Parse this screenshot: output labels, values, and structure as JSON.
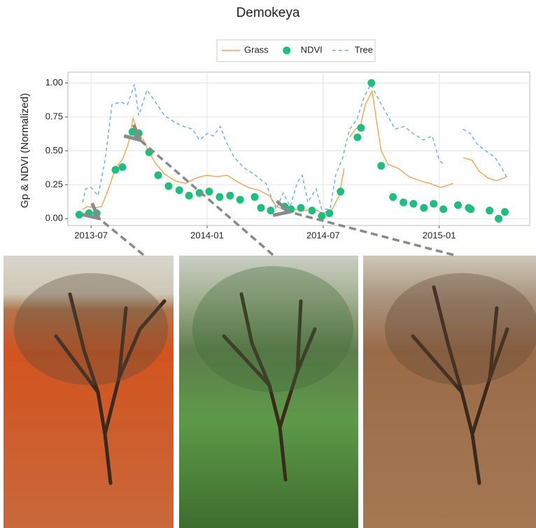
{
  "chart_data": {
    "type": "line",
    "title": "Demokeya",
    "ylabel": "Gp & NDVI (Normalized)",
    "xlim": [
      2013.4,
      2015.39
    ],
    "xticks": [
      {
        "value": 2013.5,
        "label": "2013-07"
      },
      {
        "value": 2014.0,
        "label": "2014-01"
      },
      {
        "value": 2014.5,
        "label": "2014-07"
      },
      {
        "value": 2015.0,
        "label": "2015-01"
      }
    ],
    "ylim": [
      -0.05,
      1.08
    ],
    "yticks": [
      {
        "value": 0,
        "label": "0.00"
      },
      0.25,
      {
        "value": 0.5,
        "label": "0.50"
      },
      0.75,
      {
        "value": 1,
        "label": "1.00"
      }
    ],
    "grid": true,
    "legend": "top",
    "series": [
      {
        "name": "Grass",
        "color": "#f5a54a",
        "style": "solid",
        "x": [
          2013.464,
          2013.485,
          2013.515,
          2013.545,
          2013.575,
          2013.605,
          2013.636,
          2013.66,
          2013.681,
          2013.705,
          2013.726,
          2013.747,
          2013.777,
          2013.816,
          2013.861,
          2013.907,
          2013.952,
          2013.997,
          2014.042,
          2014.087,
          2014.133,
          2014.178,
          2014.223,
          2014.268,
          2014.298,
          2014.328,
          2014.373,
          2014.419,
          2014.464,
          2014.5,
          2014.539,
          2014.569,
          2014.59,
          2014.6,
          2014.614,
          2014.639,
          2014.66,
          2014.681,
          2014.711,
          2014.729,
          2014.75,
          2014.78,
          2014.825,
          2014.87,
          2014.916,
          2014.961,
          2015.006,
          2015.06,
          2015.08,
          2015.105,
          2015.142,
          2015.172,
          2015.211,
          2015.247,
          2015.292
        ],
        "values": [
          0.07,
          0.09,
          0.08,
          0.09,
          0.22,
          0.37,
          0.44,
          0.55,
          0.74,
          0.62,
          0.58,
          0.5,
          0.41,
          0.33,
          0.28,
          0.26,
          0.3,
          0.32,
          0.31,
          0.32,
          0.27,
          0.23,
          0.21,
          0.17,
          0.09,
          0.07,
          0.07,
          0.06,
          0.07,
          0.04,
          0.07,
          0.17,
          0.37,
          null,
          0.6,
          0.66,
          0.68,
          0.84,
          0.94,
          0.73,
          0.5,
          0.4,
          0.37,
          0.31,
          0.28,
          0.26,
          0.23,
          0.26,
          null,
          0.45,
          0.43,
          0.35,
          0.3,
          0.28,
          0.31
        ]
      },
      {
        "name": "NDVI",
        "color": "#1dbf7f",
        "style": "points",
        "x": [
          2013.449,
          2013.491,
          2013.524,
          2013.605,
          2013.635,
          2013.678,
          2013.705,
          2013.75,
          2013.789,
          2013.834,
          2013.88,
          2013.922,
          2013.967,
          2014.009,
          2014.054,
          2014.099,
          2014.142,
          2014.205,
          2014.232,
          2014.274,
          2014.334,
          2014.361,
          2014.404,
          2014.452,
          2014.494,
          2014.527,
          2014.575,
          2014.648,
          2014.663,
          2014.708,
          2014.75,
          2014.801,
          2014.846,
          2014.889,
          2014.934,
          2014.976,
          2015.018,
          2015.081,
          2015.127,
          2015.136,
          2015.217,
          2015.256,
          2015.283
        ],
        "values": [
          0.03,
          0.04,
          0.04,
          0.36,
          0.38,
          0.64,
          0.63,
          0.49,
          0.32,
          0.24,
          0.21,
          0.17,
          0.19,
          0.2,
          0.16,
          0.17,
          0.14,
          0.16,
          0.08,
          0.06,
          0.09,
          0.07,
          0.08,
          0.06,
          0.02,
          0.04,
          0.2,
          0.6,
          0.67,
          1.0,
          0.39,
          0.16,
          0.12,
          0.11,
          0.08,
          0.11,
          0.07,
          0.1,
          0.08,
          0.07,
          0.06,
          0.0,
          0.05
        ]
      },
      {
        "name": "Tree",
        "color": "#6baed6",
        "style": "dashed",
        "x": [
          2013.464,
          2013.476,
          2013.5,
          2013.53,
          2013.56,
          2013.59,
          2013.627,
          2013.657,
          2013.687,
          2013.705,
          2013.741,
          2013.777,
          2013.816,
          2013.861,
          2013.898,
          2013.937,
          2013.967,
          2014.003,
          2014.027,
          2014.057,
          2014.078,
          2014.117,
          2014.163,
          2014.208,
          2014.253,
          2014.298,
          2014.328,
          2014.358,
          2014.389,
          2014.41,
          2014.434,
          2014.47,
          2014.494,
          2014.53,
          2014.554,
          2014.584,
          2014.614,
          2014.645,
          2014.675,
          2014.705,
          2014.735,
          2014.771,
          2014.81,
          2014.849,
          2014.886,
          2014.931,
          2014.97,
          2015.0,
          2015.021,
          2015.05,
          2015.102,
          2015.133,
          2015.163,
          2015.202,
          2015.241,
          2015.277,
          2015.292
        ],
        "values": [
          0.12,
          0.22,
          0.23,
          0.17,
          0.43,
          0.84,
          0.86,
          0.84,
          0.99,
          0.76,
          0.95,
          0.86,
          0.76,
          0.71,
          0.68,
          0.66,
          0.58,
          0.63,
          0.61,
          0.68,
          0.58,
          0.45,
          0.37,
          0.32,
          0.26,
          0.07,
          0.19,
          0.09,
          0.27,
          0.32,
          0.12,
          0.22,
          0.07,
          0.07,
          0.32,
          0.45,
          0.66,
          0.73,
          0.89,
          0.99,
          0.89,
          0.78,
          0.66,
          0.68,
          0.63,
          0.58,
          0.61,
          0.43,
          0.4,
          null,
          0.66,
          0.63,
          0.55,
          0.5,
          0.45,
          0.35,
          0.3
        ]
      }
    ]
  }
}
